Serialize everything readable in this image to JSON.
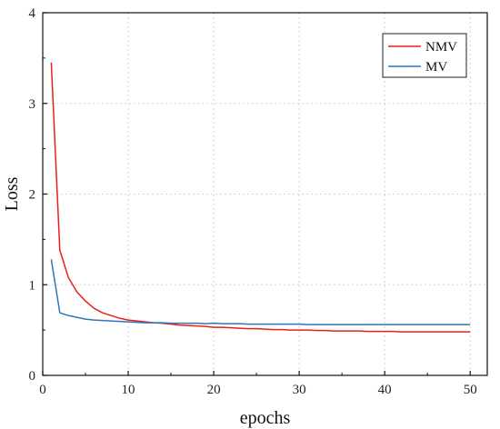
{
  "chart_data": {
    "type": "line",
    "xlabel": "epochs",
    "ylabel": "Loss",
    "xlim": [
      0,
      52
    ],
    "ylim": [
      0,
      4
    ],
    "xticks": [
      0,
      10,
      20,
      30,
      40,
      50
    ],
    "yticks": [
      0,
      1,
      2,
      3,
      4
    ],
    "grid": true,
    "legend": "top-right",
    "series": [
      {
        "name": "NMV",
        "color": "#e8201e",
        "x": [
          1,
          2,
          3,
          4,
          5,
          6,
          7,
          8,
          9,
          10,
          11,
          12,
          13,
          14,
          15,
          16,
          17,
          18,
          19,
          20,
          21,
          22,
          23,
          24,
          25,
          26,
          27,
          28,
          29,
          30,
          31,
          32,
          33,
          34,
          35,
          36,
          37,
          38,
          39,
          40,
          41,
          42,
          43,
          44,
          45,
          46,
          47,
          48,
          49,
          50
        ],
        "y": [
          3.45,
          1.38,
          1.08,
          0.92,
          0.82,
          0.74,
          0.69,
          0.66,
          0.63,
          0.61,
          0.6,
          0.59,
          0.58,
          0.575,
          0.565,
          0.555,
          0.55,
          0.545,
          0.54,
          0.53,
          0.53,
          0.525,
          0.52,
          0.515,
          0.515,
          0.51,
          0.505,
          0.505,
          0.5,
          0.5,
          0.5,
          0.495,
          0.495,
          0.49,
          0.49,
          0.49,
          0.49,
          0.485,
          0.485,
          0.485,
          0.485,
          0.48,
          0.48,
          0.48,
          0.48,
          0.48,
          0.48,
          0.48,
          0.48,
          0.48
        ]
      },
      {
        "name": "MV",
        "color": "#2e76b8",
        "x": [
          1,
          2,
          3,
          4,
          5,
          6,
          7,
          8,
          9,
          10,
          11,
          12,
          13,
          14,
          15,
          16,
          17,
          18,
          19,
          20,
          21,
          22,
          23,
          24,
          25,
          26,
          27,
          28,
          29,
          30,
          31,
          32,
          33,
          34,
          35,
          36,
          37,
          38,
          39,
          40,
          41,
          42,
          43,
          44,
          45,
          46,
          47,
          48,
          49,
          50
        ],
        "y": [
          1.28,
          0.69,
          0.66,
          0.64,
          0.62,
          0.61,
          0.605,
          0.6,
          0.595,
          0.59,
          0.585,
          0.58,
          0.58,
          0.58,
          0.575,
          0.575,
          0.575,
          0.575,
          0.57,
          0.575,
          0.57,
          0.57,
          0.57,
          0.565,
          0.565,
          0.565,
          0.565,
          0.565,
          0.565,
          0.565,
          0.56,
          0.56,
          0.56,
          0.56,
          0.56,
          0.56,
          0.56,
          0.56,
          0.56,
          0.56,
          0.56,
          0.56,
          0.56,
          0.56,
          0.56,
          0.56,
          0.56,
          0.56,
          0.56,
          0.56
        ]
      }
    ]
  }
}
